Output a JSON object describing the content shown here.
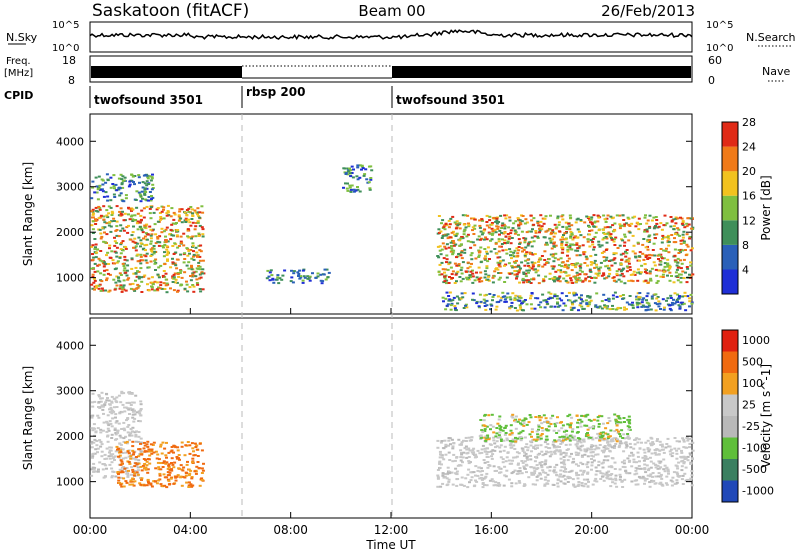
{
  "header": {
    "station": "Saskatoon (fitACF)",
    "beam": "Beam 00",
    "date": "26/Feb/2013"
  },
  "top_panels": {
    "nsky_label": "N.Sky",
    "nsky_top_tick": "10^5",
    "nsky_bottom_tick": "10^0",
    "nsearch_label": "N.Search",
    "nsearch_top_tick": "10^5",
    "nsearch_bottom_tick": "10^0",
    "freq_label": "Freq.",
    "freq_unit": "[MHz]",
    "freq_ticks": [
      "18",
      "8"
    ],
    "nave_label": "Nave",
    "nave_ticks": [
      "60",
      "0"
    ],
    "cpid_label": "CPID",
    "cpid_segments": [
      {
        "label": "twofsound 3501",
        "start_h": 0,
        "end_h": 6
      },
      {
        "label": "rbsp 200",
        "start_h": 6,
        "end_h": 12
      },
      {
        "label": "twofsound 3501",
        "start_h": 12,
        "end_h": 24
      }
    ]
  },
  "x_axis": {
    "label": "Time UT",
    "ticks": [
      "00:00",
      "04:00",
      "08:00",
      "12:00",
      "16:00",
      "20:00",
      "00:00"
    ]
  },
  "chart_data": [
    {
      "type": "heatmap",
      "title": "Power",
      "ylabel": "Slant Range [km]",
      "xlabel": "Time UT",
      "xlim_hours": [
        0,
        24
      ],
      "ylim_km": [
        200,
        4600
      ],
      "y_ticks": [
        1000,
        2000,
        3000,
        4000
      ],
      "colorbar": {
        "label": "Power [dB]",
        "ticks": [
          "4",
          "8",
          "12",
          "16",
          "20",
          "24",
          "28"
        ],
        "colors": [
          "#1f2fd6",
          "#2a60b8",
          "#3f8f5a",
          "#7fbf40",
          "#f2c21f",
          "#f07a18",
          "#e02a16"
        ]
      },
      "regions": [
        {
          "t0": 0.0,
          "t1": 4.5,
          "r0": 700,
          "r1": 2600,
          "level": "high"
        },
        {
          "t0": 0.0,
          "t1": 2.5,
          "r0": 2700,
          "r1": 3300,
          "level": "low"
        },
        {
          "t0": 7.0,
          "t1": 9.5,
          "r0": 900,
          "r1": 1200,
          "level": "low"
        },
        {
          "t0": 10.0,
          "t1": 11.2,
          "r0": 2900,
          "r1": 3500,
          "level": "low"
        },
        {
          "t0": 13.8,
          "t1": 24.0,
          "r0": 900,
          "r1": 2400,
          "level": "high"
        },
        {
          "t0": 14.0,
          "t1": 24.0,
          "r0": 300,
          "r1": 700,
          "level": "mid"
        }
      ]
    },
    {
      "type": "heatmap",
      "title": "Velocity",
      "ylabel": "Slant Range [km]",
      "xlabel": "Time UT",
      "xlim_hours": [
        0,
        24
      ],
      "ylim_km": [
        200,
        4600
      ],
      "y_ticks": [
        1000,
        2000,
        3000,
        4000
      ],
      "colorbar": {
        "label": "Velocity [m s^-1]",
        "ticks": [
          "1000",
          "500",
          "100",
          "25",
          "-25",
          "-100",
          "-500",
          "-1000"
        ],
        "colors": [
          "#2048b8",
          "#3a7f60",
          "#5fbf3a",
          "#b9b9b9",
          "#c8c8c8",
          "#f2a020",
          "#f06a10",
          "#e02010"
        ]
      },
      "regions": [
        {
          "t0": 0.0,
          "t1": 2.0,
          "r0": 1100,
          "r1": 3000,
          "level": "gray"
        },
        {
          "t0": 1.0,
          "t1": 4.5,
          "r0": 900,
          "r1": 1900,
          "level": "orange"
        },
        {
          "t0": 13.8,
          "t1": 24.0,
          "r0": 900,
          "r1": 2000,
          "level": "gray"
        },
        {
          "t0": 15.5,
          "t1": 21.5,
          "r0": 1900,
          "r1": 2500,
          "level": "green"
        }
      ]
    }
  ]
}
